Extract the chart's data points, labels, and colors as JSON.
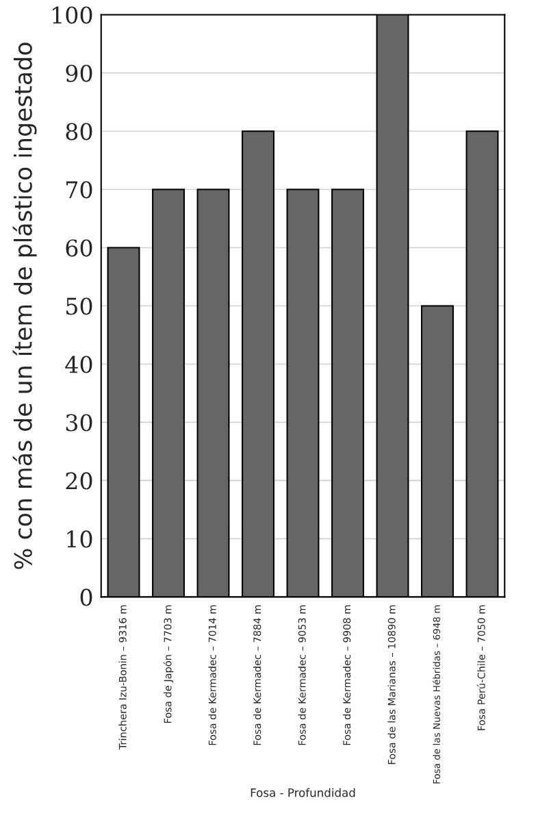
{
  "chart_data": {
    "type": "bar",
    "categories": [
      "Trinchera Izu-Bonin – 9316 m",
      "Fosa de Japón – 7703 m",
      "Fosa de Kermadec – 7014 m",
      "Fosa de Kermadec – 7884 m",
      "Fosa de Kermadec – 9053 m",
      "Fosa de Kermadec – 9908 m",
      "Fosa de las Marianas – 10890 m",
      "Fosa de las Nuevas Hébridas – 6948 m",
      "Fosa Perú-Chile – 7050 m"
    ],
    "values": [
      60,
      70,
      70,
      80,
      70,
      70,
      100,
      50,
      80
    ],
    "color": "#666666",
    "xlabel": "Fosa - Profundidad",
    "ylabel": "% con más de un ítem de plástico ingestado",
    "ylim": [
      0,
      100
    ],
    "yticks": [
      0,
      10,
      20,
      30,
      40,
      50,
      60,
      70,
      80,
      90,
      100
    ],
    "grid": "y",
    "legend": false
  }
}
